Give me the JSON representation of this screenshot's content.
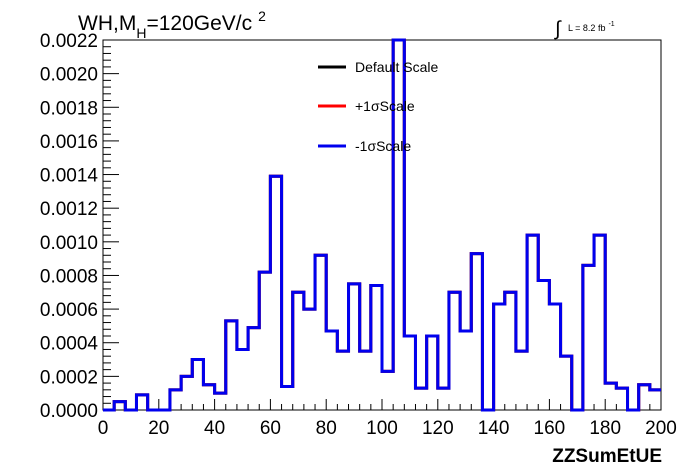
{
  "chart_data": {
    "type": "line",
    "style": "step-histogram",
    "title": {
      "main": "WH,M",
      "subscript": "H",
      "rest": "=120GeV/c",
      "superscript": "2"
    },
    "luminosity": {
      "integral_sign": "∫",
      "text": "L = 8.2 fb",
      "superscript": "-1"
    },
    "xlabel": "ZZSumEtUE",
    "ylabel": "",
    "xlim": [
      0,
      200
    ],
    "ylim": [
      0,
      0.0022
    ],
    "x_ticks": [
      "0",
      "20",
      "40",
      "60",
      "80",
      "100",
      "120",
      "140",
      "160",
      "180",
      "200"
    ],
    "y_ticks": [
      "0.0000",
      "0.0002",
      "0.0004",
      "0.0006",
      "0.0008",
      "0.0010",
      "0.0012",
      "0.0014",
      "0.0016",
      "0.0018",
      "0.0020",
      "0.0022"
    ],
    "grid": false,
    "legend_position": "top-center",
    "bin_edges": [
      0,
      4,
      8,
      12,
      16,
      20,
      24,
      28,
      32,
      36,
      40,
      44,
      48,
      52,
      56,
      60,
      64,
      68,
      72,
      76,
      80,
      84,
      88,
      92,
      96,
      100,
      104,
      108,
      112,
      116,
      120,
      124,
      128,
      132,
      136,
      140,
      144,
      148,
      152,
      156,
      160,
      164,
      168,
      172,
      176,
      180,
      184,
      188,
      192,
      196,
      200
    ],
    "series": [
      {
        "name": "Default Scale",
        "color": "#000000",
        "values": [
          0.0,
          5e-05,
          0.0,
          9e-05,
          0.0,
          0.0,
          0.00012,
          0.0002,
          0.0003,
          0.00015,
          0.0001,
          0.00053,
          0.00036,
          0.00049,
          0.00082,
          0.00139,
          0.00014,
          0.0007,
          0.0006,
          0.00092,
          0.00047,
          0.00035,
          0.00075,
          0.00035,
          0.00074,
          0.00023,
          0.0022,
          0.00044,
          0.00013,
          0.00044,
          0.00013,
          0.0007,
          0.00047,
          0.00093,
          0.0,
          0.00063,
          0.0007,
          0.00035,
          0.00104,
          0.00077,
          0.00063,
          0.00032,
          0.0,
          0.00086,
          0.00104,
          0.00016,
          0.00013,
          0.0,
          0.00015,
          0.00012
        ]
      },
      {
        "name": "+1σScale",
        "color": "#ff0000",
        "values": [
          0.0,
          5e-05,
          0.0,
          9e-05,
          0.0,
          0.0,
          0.00012,
          0.0002,
          0.0003,
          0.00015,
          0.0001,
          0.00053,
          0.00036,
          0.00049,
          0.00082,
          0.00139,
          0.00014,
          0.0007,
          0.0006,
          0.00092,
          0.00047,
          0.00035,
          0.00075,
          0.00035,
          0.00074,
          0.00023,
          0.0022,
          0.00044,
          0.00013,
          0.00044,
          0.00013,
          0.0007,
          0.00047,
          0.00093,
          0.0,
          0.00063,
          0.0007,
          0.00035,
          0.00104,
          0.00077,
          0.00063,
          0.00032,
          0.0,
          0.00086,
          0.00104,
          0.00016,
          0.00013,
          0.0,
          0.00015,
          0.00012
        ]
      },
      {
        "name": "-1σScale",
        "color": "#0000ee",
        "values": [
          0.0,
          5e-05,
          0.0,
          9e-05,
          0.0,
          0.0,
          0.00012,
          0.0002,
          0.0003,
          0.00015,
          0.0001,
          0.00053,
          0.00036,
          0.00049,
          0.00082,
          0.00139,
          0.00014,
          0.0007,
          0.0006,
          0.00092,
          0.00047,
          0.00035,
          0.00075,
          0.00035,
          0.00074,
          0.00023,
          0.0022,
          0.00044,
          0.00013,
          0.00044,
          0.00013,
          0.0007,
          0.00047,
          0.00093,
          0.0,
          0.00063,
          0.0007,
          0.00035,
          0.00104,
          0.00077,
          0.00063,
          0.00032,
          0.0,
          0.00086,
          0.00104,
          0.00016,
          0.00013,
          0.0,
          0.00015,
          0.00012
        ]
      }
    ]
  }
}
